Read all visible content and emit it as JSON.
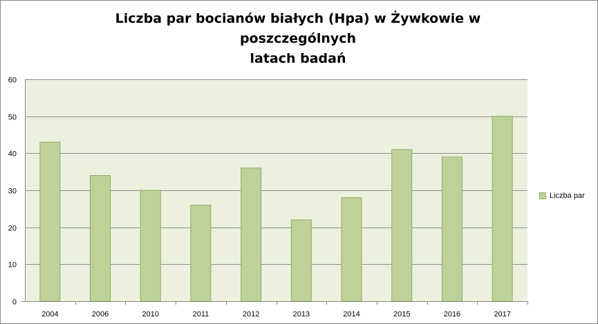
{
  "chart_data": {
    "type": "bar",
    "title": "Liczba par bocianów białych (Hpa)  w Żywkowie w poszczególnych latach badań",
    "title_lines": [
      "Liczba par bocianów białych (Hpa)  w Żywkowie w poszczególnych",
      "latach badań"
    ],
    "categories": [
      "2004",
      "2006",
      "2010",
      "2011",
      "2012",
      "2013",
      "2014",
      "2015",
      "2016",
      "2017"
    ],
    "series": [
      {
        "name": "Liczba par",
        "values": [
          43,
          34,
          30,
          26,
          36,
          22,
          28,
          41,
          39,
          50
        ],
        "color": "#bdd198",
        "border_color": "#8eab67"
      }
    ],
    "xlabel": "",
    "ylabel": "",
    "ylim": [
      0,
      60
    ],
    "yticks": [
      "0",
      "10",
      "20",
      "30",
      "40",
      "50",
      "60"
    ],
    "grid": true,
    "legend_position": "right",
    "plot_background": "#ebf1de",
    "gridline_color": "#8c8c8c"
  }
}
